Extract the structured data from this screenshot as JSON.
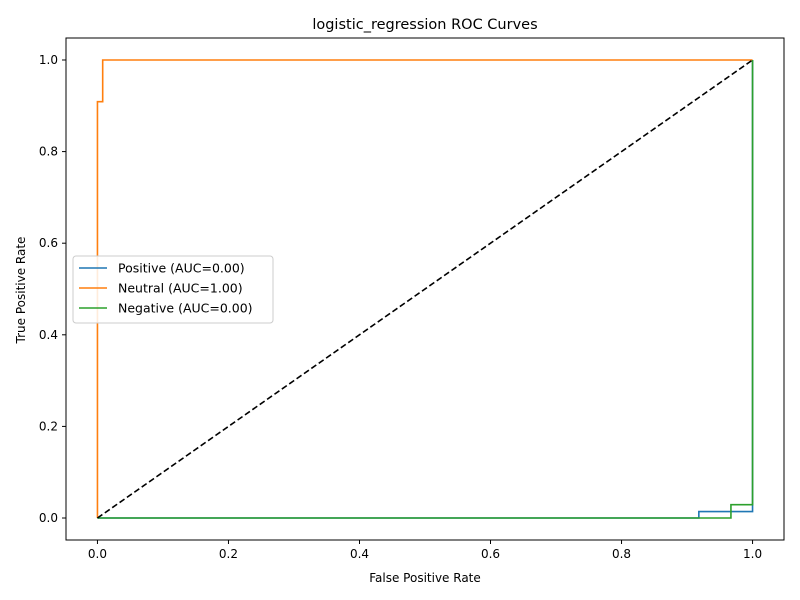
{
  "chart_data": {
    "type": "line",
    "title": "logistic_regression ROC Curves",
    "xlabel": "False Positive Rate",
    "ylabel": "True Positive Rate",
    "xlim": [
      -0.048,
      1.048
    ],
    "ylim": [
      -0.048,
      1.048
    ],
    "xticks": [
      0.0,
      0.2,
      0.4,
      0.6,
      0.8,
      1.0
    ],
    "yticks": [
      0.0,
      0.2,
      0.4,
      0.6,
      0.8,
      1.0
    ],
    "xtick_labels": [
      "0.0",
      "0.2",
      "0.4",
      "0.6",
      "0.8",
      "1.0"
    ],
    "ytick_labels": [
      "0.0",
      "0.2",
      "0.4",
      "0.6",
      "0.8",
      "1.0"
    ],
    "grid": false,
    "legend_position": "center-left",
    "series": [
      {
        "name": "Positive (AUC=0.00)",
        "color": "#1f77b4",
        "style": "step",
        "x": [
          0.0,
          0.918,
          0.918,
          1.0,
          1.0
        ],
        "y": [
          0.0,
          0.0,
          0.014,
          0.014,
          1.0
        ]
      },
      {
        "name": "Neutral (AUC=1.00)",
        "color": "#ff7f0e",
        "style": "step",
        "x": [
          0.0,
          0.0,
          0.008,
          0.008,
          1.0
        ],
        "y": [
          0.0,
          0.909,
          0.909,
          1.0,
          1.0
        ]
      },
      {
        "name": "Negative (AUC=0.00)",
        "color": "#2ca02c",
        "style": "step",
        "x": [
          0.0,
          0.967,
          0.967,
          1.0,
          1.0
        ],
        "y": [
          0.0,
          0.0,
          0.029,
          0.029,
          1.0
        ]
      }
    ],
    "reference_line": {
      "x": [
        0.0,
        1.0
      ],
      "y": [
        0.0,
        1.0
      ],
      "color": "#000000",
      "dashed": true
    }
  }
}
